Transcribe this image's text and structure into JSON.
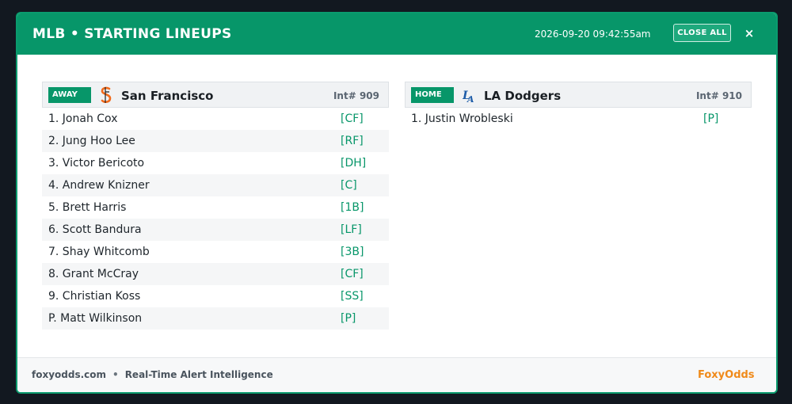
{
  "header": {
    "title": "MLB • STARTING LINEUPS",
    "timestamp": "2026-09-20 09:42:55am",
    "close_all_label": "CLOSE ALL",
    "close_icon": "×"
  },
  "away": {
    "badge": "AWAY",
    "logo_icon": "sf-giants-logo",
    "logo_glyph": "SF",
    "team": "San Francisco",
    "int_label": "Int# 909",
    "players": [
      {
        "name": "1. Jonah Cox",
        "pos": "[CF]"
      },
      {
        "name": "2. Jung Hoo Lee",
        "pos": "[RF]"
      },
      {
        "name": "3. Victor Bericoto",
        "pos": "[DH]"
      },
      {
        "name": "4. Andrew Knizner",
        "pos": "[C]"
      },
      {
        "name": "5. Brett Harris",
        "pos": "[1B]"
      },
      {
        "name": "6. Scott Bandura",
        "pos": "[LF]"
      },
      {
        "name": "7. Shay Whitcomb",
        "pos": "[3B]"
      },
      {
        "name": "8. Grant McCray",
        "pos": "[CF]"
      },
      {
        "name": "9. Christian Koss",
        "pos": "[SS]"
      },
      {
        "name": "P. Matt Wilkinson",
        "pos": "[P]"
      }
    ]
  },
  "home": {
    "badge": "HOME",
    "logo_icon": "la-dodgers-logo",
    "logo_glyph": "LA",
    "team": "LA Dodgers",
    "int_label": "Int# 910",
    "players": [
      {
        "name": "1. Justin Wrobleski",
        "pos": "[P]"
      }
    ]
  },
  "footer": {
    "site": "foxyodds.com",
    "separator": "•",
    "tagline": "Real-Time Alert Intelligence",
    "brand": "FoxyOdds"
  },
  "colors": {
    "accent": "#079669",
    "brand": "#f08a1a",
    "giants_orange": "#f26a1b",
    "dodgers_blue": "#1d5ca8"
  }
}
